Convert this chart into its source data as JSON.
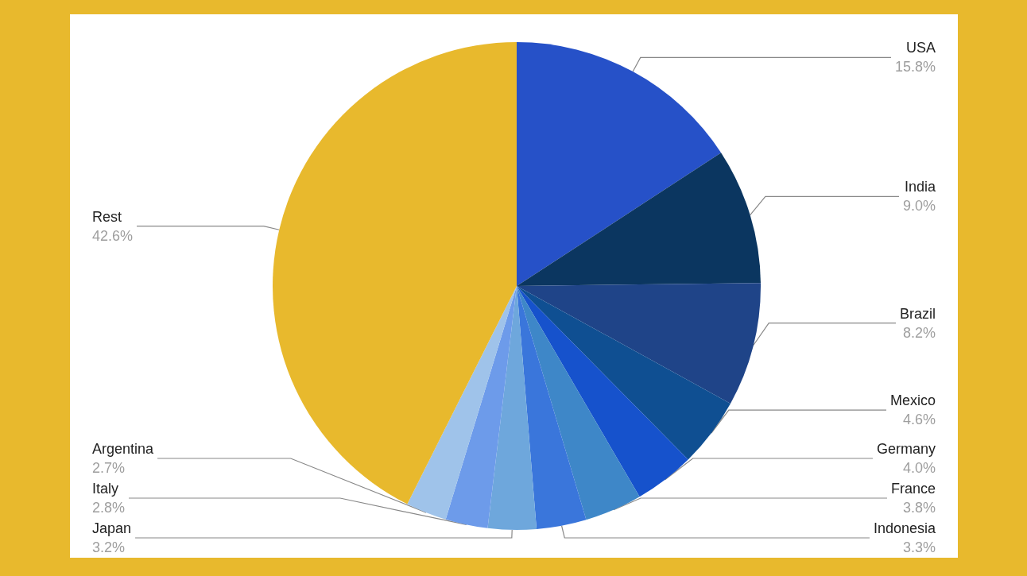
{
  "chart_data": {
    "type": "pie",
    "categories": [
      "USA",
      "India",
      "Brazil",
      "Mexico",
      "Germany",
      "France",
      "Indonesia",
      "Japan",
      "Italy",
      "Argentina",
      "Rest"
    ],
    "values": [
      15.8,
      9.0,
      8.2,
      4.6,
      4.0,
      3.8,
      3.3,
      3.2,
      2.8,
      2.7,
      42.6
    ],
    "value_labels": [
      "15.8%",
      "9.0%",
      "8.2%",
      "4.6%",
      "4.0%",
      "3.8%",
      "3.3%",
      "3.2%",
      "2.8%",
      "2.7%",
      "42.6%"
    ],
    "colors": [
      "#2651c8",
      "#0b3660",
      "#1f4488",
      "#0f4f92",
      "#1652cc",
      "#3e87c8",
      "#3a76db",
      "#6ea7dc",
      "#6d9bea",
      "#9fc3ea",
      "#e8b92d"
    ],
    "legend": false
  }
}
